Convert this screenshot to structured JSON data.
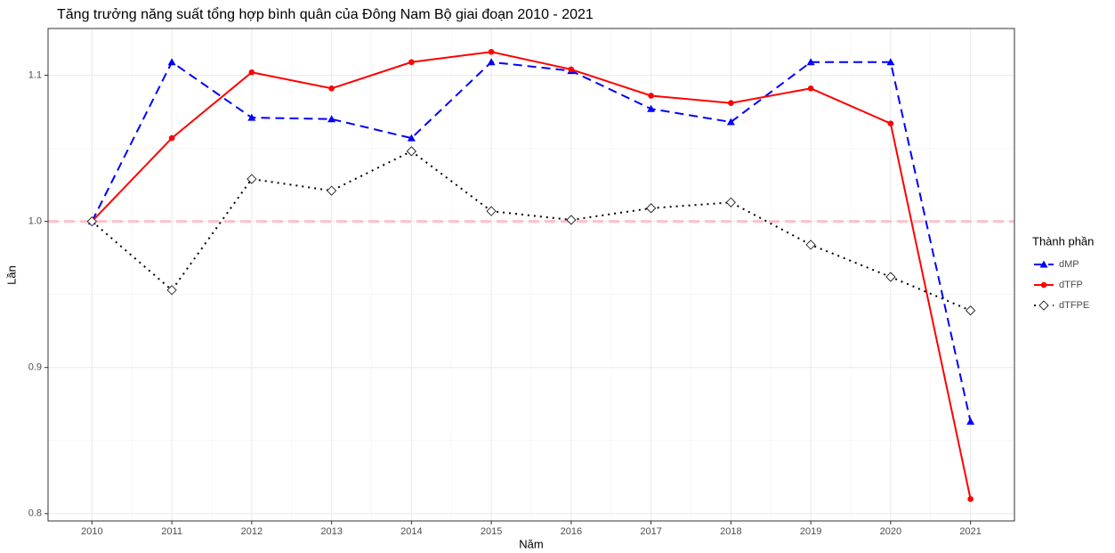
{
  "chart_data": {
    "type": "line",
    "title": "Tăng trưởng năng suất tổng hợp bình quân của Đông Nam Bộ giai đoạn 2010 - 2021",
    "x_label": "Năm",
    "y_label": "Lần",
    "x": [
      2010,
      2011,
      2012,
      2013,
      2014,
      2015,
      2016,
      2017,
      2018,
      2019,
      2020,
      2021
    ],
    "xlim": [
      2009.45,
      2021.55
    ],
    "xticks": [
      2010,
      2011,
      2012,
      2013,
      2014,
      2015,
      2016,
      2017,
      2018,
      2019,
      2020,
      2021
    ],
    "ylim": [
      0.795,
      1.132
    ],
    "yticks": [
      {
        "value": 0.8,
        "label": "0.8"
      },
      0.9,
      {
        "value": 1.0,
        "label": "1.0"
      },
      1.1
    ],
    "grid": true,
    "hline": {
      "value": 1.0,
      "color": "#ffc0cb"
    },
    "legend_title": "Thành phần",
    "legend": "right",
    "series": [
      {
        "name": "dMP",
        "color": "#0000ff",
        "marker": "triangle",
        "dash": "dashed",
        "values": [
          1.0,
          1.109,
          1.071,
          1.07,
          1.057,
          1.109,
          1.103,
          1.077,
          1.068,
          1.109,
          1.109,
          0.863
        ]
      },
      {
        "name": "dTFP",
        "color": "#ff0000",
        "marker": "circle",
        "dash": "solid",
        "values": [
          1.0,
          1.057,
          1.102,
          1.091,
          1.109,
          1.116,
          1.104,
          1.086,
          1.081,
          1.091,
          1.067,
          0.81
        ]
      },
      {
        "name": "dTFPE",
        "color": "#000000",
        "marker": "diamond",
        "dash": "dotted",
        "values": [
          1.0,
          0.953,
          1.029,
          1.021,
          1.048,
          1.007,
          1.001,
          1.009,
          1.013,
          0.984,
          0.962,
          0.939
        ]
      }
    ]
  }
}
